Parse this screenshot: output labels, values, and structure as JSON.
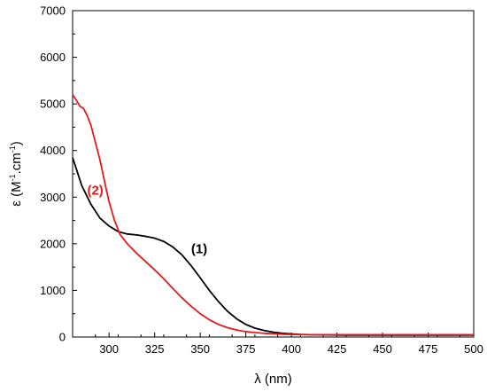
{
  "chart_data": {
    "type": "line",
    "title": "",
    "xlabel": "λ (nm)",
    "ylabel": {
      "main": "ε (M",
      "sup1": "-1",
      "mid": ".cm",
      "sup2": "-1",
      "end": ")"
    },
    "xlim": [
      280,
      500
    ],
    "ylim": [
      0,
      7000
    ],
    "xticks": [
      300,
      325,
      350,
      375,
      400,
      425,
      450,
      475,
      500
    ],
    "yticks": [
      0,
      1000,
      2000,
      3000,
      4000,
      5000,
      6000,
      7000
    ],
    "grid": false,
    "legend": "none",
    "series": [
      {
        "label": "(1)",
        "color": "#000000",
        "x": [
          280,
          285,
          290,
          295,
          300,
          305,
          310,
          315,
          320,
          325,
          330,
          335,
          340,
          345,
          350,
          355,
          360,
          365,
          370,
          375,
          380,
          385,
          390,
          395,
          400,
          405,
          410,
          420,
          430,
          450,
          475,
          500
        ],
        "y": [
          3850,
          3250,
          2850,
          2550,
          2380,
          2260,
          2210,
          2190,
          2160,
          2120,
          2050,
          1930,
          1760,
          1530,
          1270,
          1000,
          760,
          550,
          390,
          270,
          190,
          140,
          105,
          80,
          65,
          55,
          50,
          45,
          42,
          40,
          40,
          40
        ]
      },
      {
        "label": "(2)",
        "color": "#e41a1c",
        "x": [
          280,
          282,
          284,
          286,
          288,
          290,
          292,
          295,
          298,
          300,
          303,
          306,
          310,
          315,
          320,
          325,
          330,
          335,
          340,
          345,
          350,
          355,
          360,
          365,
          370,
          375,
          380,
          385,
          390,
          395,
          400,
          410,
          420,
          440,
          460,
          500
        ],
        "y": [
          5200,
          5080,
          4950,
          4900,
          4750,
          4550,
          4250,
          3800,
          3250,
          2900,
          2500,
          2200,
          2000,
          1800,
          1620,
          1440,
          1250,
          1040,
          840,
          660,
          500,
          370,
          270,
          200,
          150,
          115,
          95,
          80,
          70,
          60,
          55,
          50,
          50,
          50,
          50,
          50
        ]
      }
    ],
    "annotations": [
      {
        "text": "(1)",
        "color": "#000000",
        "x": 345,
        "y": 1800
      },
      {
        "text": "(2)",
        "color": "#e41a1c",
        "x": 288,
        "y": 3050
      }
    ]
  }
}
